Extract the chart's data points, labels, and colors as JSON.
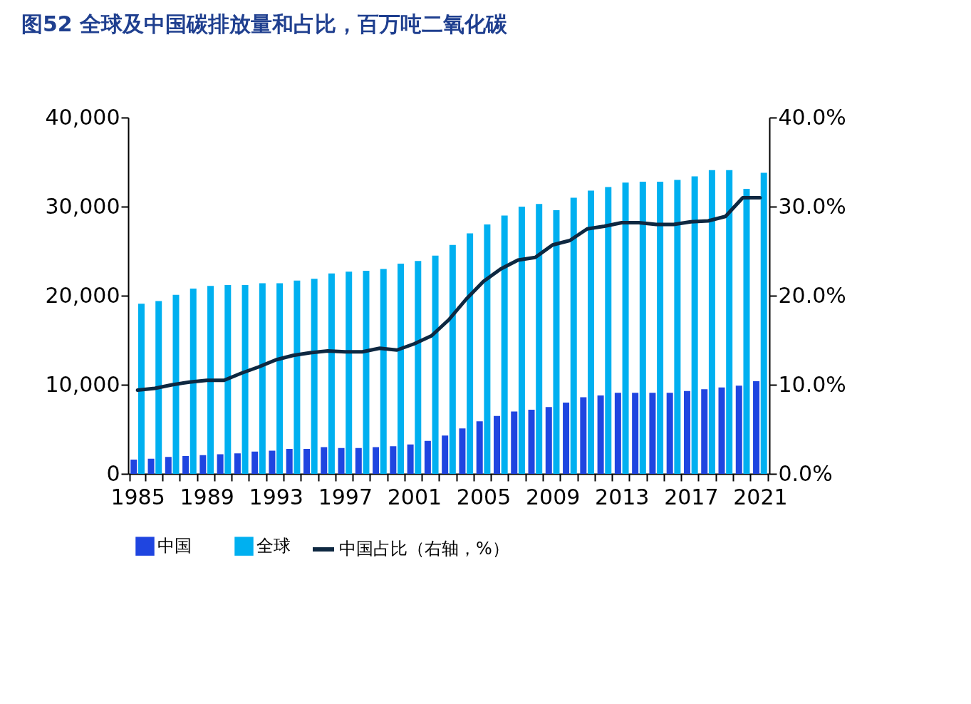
{
  "chart_data": {
    "type": "bar",
    "title": "图52  全球及中国碳排放量和占比，百万吨二氧化碳",
    "categories": [
      "1985",
      null,
      null,
      null,
      "1989",
      null,
      null,
      null,
      "1993",
      null,
      null,
      null,
      "1997",
      null,
      null,
      null,
      "2001",
      null,
      null,
      null,
      "2005",
      null,
      null,
      null,
      "2009",
      null,
      null,
      null,
      "2013",
      null,
      null,
      null,
      "2017",
      null,
      null,
      null,
      "2021"
    ],
    "series": [
      {
        "name": "中国",
        "color": "#1f45e0",
        "values": [
          1600.0,
          1700.0,
          1900.0,
          2000.0,
          2100.0,
          2200.0,
          2300.0,
          2500.0,
          2600.0,
          2800.0,
          2800.0,
          3000.0,
          2900.0,
          2900.0,
          3000.0,
          3100.0,
          3300.0,
          3700.0,
          4300.0,
          5100.0,
          5900.0,
          6500.0,
          7000.0,
          7200.0,
          7500.0,
          8000.0,
          8600.0,
          8800.0,
          9100.0,
          9100.0,
          9100.0,
          9100.0,
          9300.0,
          9500.0,
          9700.0,
          9900.0,
          10400.0
        ]
      },
      {
        "name": "全球",
        "color": "#00b0f0",
        "values": [
          19100.0,
          19400.0,
          20100.0,
          20800.0,
          21100.0,
          21200.0,
          21200.0,
          21400.0,
          21400.0,
          21700.0,
          21900.0,
          22500.0,
          22700.0,
          22800.0,
          23000.0,
          23600.0,
          23900.0,
          24500.0,
          25700.0,
          27000.0,
          28000.0,
          29000.0,
          30000.0,
          30300.0,
          29600.0,
          31000.0,
          31800.0,
          32200.0,
          32700.0,
          32800.0,
          32800.0,
          33000.0,
          33400.0,
          34100.0,
          34100.0,
          32000.0,
          33800.0
        ]
      },
      {
        "name": "中国占比（右轴，%）",
        "type": "line",
        "axis": "y2",
        "color": "#0e2841",
        "values": [
          9.4,
          9.6,
          10.0,
          10.3,
          10.5,
          10.5,
          11.3,
          12.0,
          12.8,
          13.3,
          13.6,
          13.8,
          13.7,
          13.7,
          14.1,
          13.9,
          14.6,
          15.5,
          17.3,
          19.6,
          21.6,
          23.0,
          24.0,
          24.3,
          25.7,
          26.2,
          27.5,
          27.8,
          28.2,
          28.2,
          28.0,
          28.0,
          28.3,
          28.4,
          28.9,
          31.0,
          31.0
        ]
      }
    ],
    "ylim": [
      0,
      40000
    ],
    "yticks": [
      0,
      {
        "value": 10000,
        "label": "10,000"
      },
      {
        "value": 20000,
        "label": "20,000"
      },
      {
        "value": 30000,
        "label": "30,000"
      },
      {
        "value": 40000,
        "label": "40,000"
      }
    ],
    "y2lim": [
      0,
      40
    ],
    "y2ticks": [
      {
        "value": 0,
        "label": "0.0%"
      },
      {
        "value": 10,
        "label": "10.0%"
      },
      {
        "value": 20,
        "label": "20.0%"
      },
      {
        "value": 30,
        "label": "30.0%"
      },
      {
        "value": 40,
        "label": "40.0%"
      }
    ],
    "legend": "bottom",
    "line_style": "solid",
    "marker": "none"
  }
}
